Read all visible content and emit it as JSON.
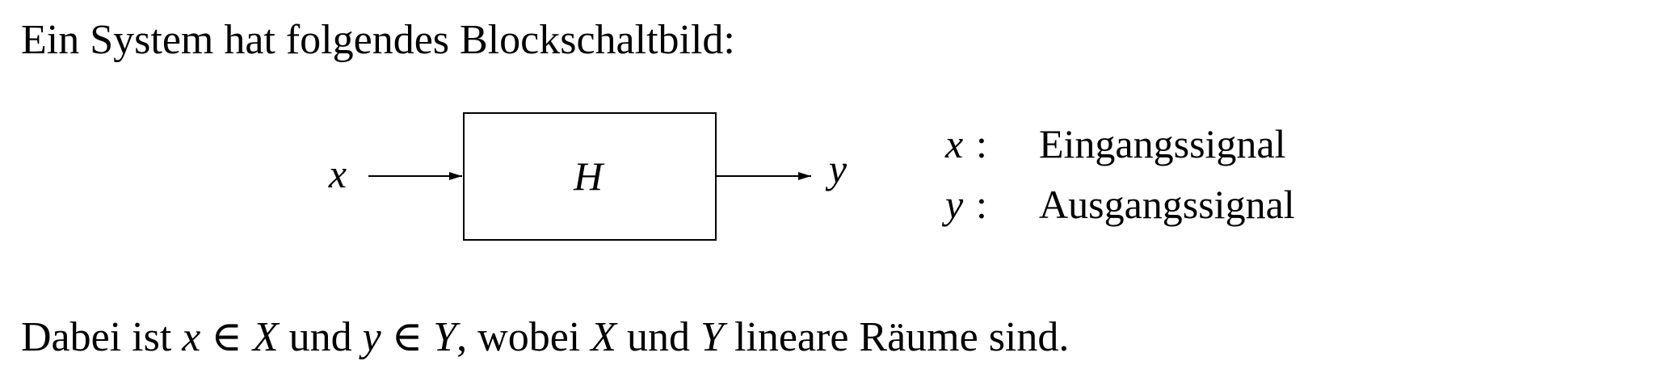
{
  "intro_text": "Ein System hat folgendes Blockschaltbild:",
  "diagram": {
    "input_symbol": "x",
    "block_label": "H",
    "output_symbol": "y"
  },
  "legend": [
    {
      "symbol": "x",
      "colon": ":",
      "description": "Eingangssignal"
    },
    {
      "symbol": "y",
      "colon": ":",
      "description": "Ausgangssignal"
    }
  ],
  "outro": {
    "t1": "Dabei ist ",
    "x": "x",
    "in1": " ∈ ",
    "X1": "X",
    "und1": " und ",
    "y": "y",
    "in2": " ∈ ",
    "Y1": "Y",
    "wobei": ", wobei ",
    "X2": "X",
    "und2": " und ",
    "Y2": "Y",
    "rest": " lineare Räume sind."
  }
}
